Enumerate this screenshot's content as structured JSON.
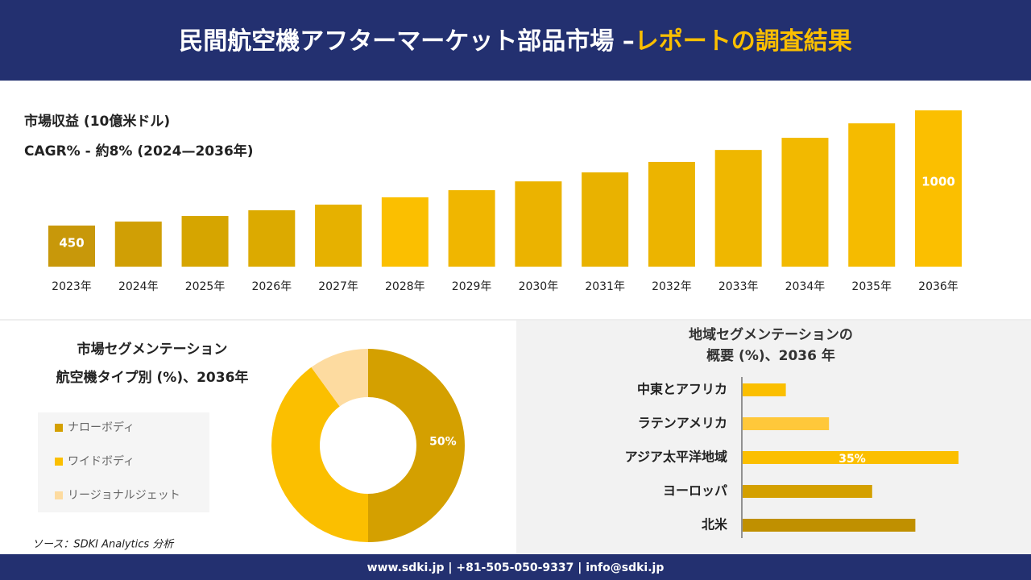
{
  "header": {
    "title": "民間航空機アフターマーケット部品市場 –",
    "title_highlight": "レポートの調査結果"
  },
  "chart_data": [
    {
      "type": "bar",
      "title": "市場収益 (10億米ドル)",
      "subtitle": "CAGR% - 約8% (2024—2036年)",
      "categories": [
        "2023年",
        "2024年",
        "2025年",
        "2026年",
        "2027年",
        "2028年",
        "2029年",
        "2030年",
        "2031年",
        "2032年",
        "2033年",
        "2034年",
        "2035年",
        "2036年"
      ],
      "values": [
        450,
        469,
        496,
        523,
        550,
        585,
        619,
        661,
        704,
        754,
        811,
        869,
        938,
        1000
      ],
      "value_labels": [
        "450",
        null,
        null,
        null,
        null,
        null,
        null,
        null,
        null,
        null,
        null,
        null,
        null,
        "1000"
      ],
      "colors": [
        "#c8980a",
        "#d09f05",
        "#d6a500",
        "#dcaa00",
        "#e6b100",
        "#fbbf00",
        "#f0b600",
        "#ebb300",
        "#e9b200",
        "#ecb400",
        "#efb700",
        "#f2b900",
        "#f5bb00",
        "#fbbf00"
      ],
      "ylim": [
        254,
        1000
      ]
    },
    {
      "type": "donut",
      "title": [
        "市場セグメンテーション",
        "航空機タイプ別 (%)、2036年"
      ],
      "series": [
        {
          "name": "ナローボディ",
          "color": "#d4a000",
          "value": 50
        },
        {
          "name": "ワイドボディ",
          "color": "#fbbf00",
          "value": 40
        },
        {
          "name": "リージョナルジェット",
          "color": "#fddba0",
          "value": 10
        }
      ],
      "value_labels": [
        "50%",
        null,
        null
      ]
    },
    {
      "type": "hbar",
      "title": [
        "地域セグメンテーションの",
        "概要 (%)、2036 年"
      ],
      "categories": [
        "中東とアフリカ",
        "ラテンアメリカ",
        "アジア太平洋地域",
        "ヨーロッパ",
        "北米"
      ],
      "values": [
        7,
        14,
        35,
        21,
        28
      ],
      "value_labels": [
        null,
        null,
        "35%",
        null,
        null
      ],
      "colors": [
        "#fbbf00",
        "#ffc83a",
        "#fbbf00",
        "#d4a000",
        "#c09000"
      ],
      "xlim": [
        0,
        35
      ]
    }
  ],
  "source": "ソース：SDKI Analytics 分析",
  "footer": "www.sdki.jp | +81-505-050-9337 | info@sdki.jp"
}
